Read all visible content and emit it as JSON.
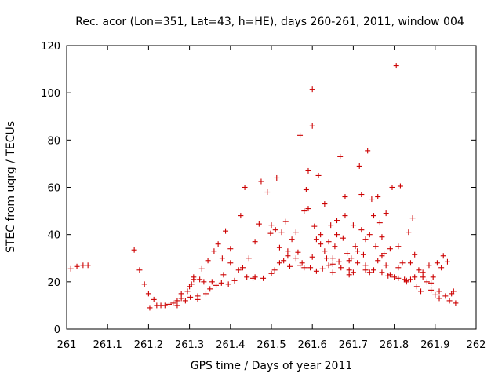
{
  "chart_data": {
    "type": "scatter",
    "title": "Rec. acor (Lon=351, Lat=43, h=HE), days 260-261, 2011, window 004",
    "xlabel": "GPS time / Days of year 2011",
    "ylabel": "STEC from uqrg / TECUs",
    "xlim": [
      261,
      262
    ],
    "ylim": [
      0,
      120
    ],
    "xticks": [
      261,
      261.1,
      261.2,
      261.3,
      261.4,
      261.5,
      261.6,
      261.7,
      261.8,
      261.9,
      262
    ],
    "yticks": [
      0,
      20,
      40,
      60,
      80,
      100,
      120
    ],
    "xtick_labels": [
      "261",
      "261.1",
      "261.2",
      "261.3",
      "261.4",
      "261.5",
      "261.6",
      "261.7",
      "261.8",
      "261.9",
      "262"
    ],
    "ytick_labels": [
      "0",
      "20",
      "40",
      "60",
      "80",
      "100",
      "120"
    ],
    "marker_color": "#cc0000",
    "marker": "+",
    "points": [
      [
        261.01,
        25.5
      ],
      [
        261.025,
        26.5
      ],
      [
        261.04,
        27.0
      ],
      [
        261.052,
        27.0
      ],
      [
        261.165,
        33.5
      ],
      [
        261.178,
        25.0
      ],
      [
        261.19,
        19.0
      ],
      [
        261.2,
        15.0
      ],
      [
        261.203,
        9.0
      ],
      [
        261.213,
        12.5
      ],
      [
        261.22,
        10.0
      ],
      [
        261.23,
        10.0
      ],
      [
        261.24,
        10.0
      ],
      [
        261.25,
        10.5
      ],
      [
        261.26,
        11.0
      ],
      [
        261.27,
        12.0
      ],
      [
        261.28,
        13.0
      ],
      [
        261.29,
        12.0
      ],
      [
        261.295,
        16.0
      ],
      [
        261.302,
        13.5
      ],
      [
        261.305,
        19.0
      ],
      [
        261.31,
        22.0
      ],
      [
        261.32,
        14.0
      ],
      [
        261.325,
        21.0
      ],
      [
        261.335,
        20.0
      ],
      [
        261.34,
        15.0
      ],
      [
        261.345,
        29.0
      ],
      [
        261.35,
        17.0
      ],
      [
        261.355,
        20.0
      ],
      [
        261.365,
        18.5
      ],
      [
        261.37,
        36.0
      ],
      [
        261.378,
        19.5
      ],
      [
        261.383,
        23.0
      ],
      [
        261.388,
        41.5
      ],
      [
        261.395,
        19.0
      ],
      [
        261.4,
        28.0
      ],
      [
        261.41,
        20.5
      ],
      [
        261.42,
        25.0
      ],
      [
        261.425,
        48.0
      ],
      [
        261.435,
        60.0
      ],
      [
        261.44,
        22.0
      ],
      [
        261.445,
        30.0
      ],
      [
        261.455,
        21.5
      ],
      [
        261.46,
        37.0
      ],
      [
        261.47,
        44.5
      ],
      [
        261.475,
        62.5
      ],
      [
        261.48,
        21.5
      ],
      [
        261.49,
        58.0
      ],
      [
        261.498,
        40.5
      ],
      [
        261.5,
        44.0
      ],
      [
        261.508,
        25.0
      ],
      [
        261.51,
        42.0
      ],
      [
        261.513,
        64.0
      ],
      [
        261.52,
        34.5
      ],
      [
        261.525,
        41.0
      ],
      [
        261.53,
        29.0
      ],
      [
        261.535,
        45.5
      ],
      [
        261.54,
        33.0
      ],
      [
        261.545,
        26.5
      ],
      [
        261.55,
        38.0
      ],
      [
        261.56,
        30.0
      ],
      [
        261.565,
        32.5
      ],
      [
        261.57,
        82.0
      ],
      [
        261.575,
        28.0
      ],
      [
        261.58,
        26.0
      ],
      [
        261.585,
        59.0
      ],
      [
        261.59,
        51.0
      ],
      [
        261.595,
        26.0
      ],
      [
        261.6,
        86.0
      ],
      [
        261.605,
        43.5
      ],
      [
        261.61,
        24.5
      ],
      [
        261.615,
        65.0
      ],
      [
        261.62,
        36.0
      ],
      [
        261.625,
        25.5
      ],
      [
        261.63,
        53.0
      ],
      [
        261.635,
        30.0
      ],
      [
        261.64,
        27.0
      ],
      [
        261.645,
        44.0
      ],
      [
        261.65,
        24.0
      ],
      [
        261.655,
        35.0
      ],
      [
        261.66,
        40.0
      ],
      [
        261.665,
        28.5
      ],
      [
        261.668,
        73.0
      ],
      [
        261.675,
        38.5
      ],
      [
        261.68,
        48.0
      ],
      [
        261.685,
        32.0
      ],
      [
        261.69,
        25.0
      ],
      [
        261.695,
        30.0
      ],
      [
        261.7,
        24.0
      ],
      [
        261.705,
        35.0
      ],
      [
        261.71,
        28.0
      ],
      [
        261.715,
        69.0
      ],
      [
        261.72,
        57.0
      ],
      [
        261.725,
        31.5
      ],
      [
        261.73,
        38.0
      ],
      [
        261.735,
        75.5
      ],
      [
        261.74,
        24.0
      ],
      [
        261.745,
        55.0
      ],
      [
        261.75,
        48.0
      ],
      [
        261.755,
        35.0
      ],
      [
        261.76,
        29.0
      ],
      [
        261.765,
        45.0
      ],
      [
        261.77,
        39.0
      ],
      [
        261.775,
        32.0
      ],
      [
        261.78,
        27.0
      ],
      [
        261.785,
        22.5
      ],
      [
        261.79,
        34.0
      ],
      [
        261.795,
        60.0
      ],
      [
        261.8,
        22.0
      ],
      [
        261.805,
        111.5
      ],
      [
        261.81,
        35.0
      ],
      [
        261.815,
        60.5
      ],
      [
        261.82,
        28.0
      ],
      [
        261.825,
        21.0
      ],
      [
        261.83,
        20.0
      ],
      [
        261.835,
        41.0
      ],
      [
        261.84,
        28.0
      ],
      [
        261.845,
        47.0
      ],
      [
        261.85,
        22.0
      ],
      [
        261.855,
        18.0
      ],
      [
        261.86,
        25.0
      ],
      [
        261.865,
        16.0
      ],
      [
        261.87,
        24.0
      ],
      [
        261.88,
        20.0
      ],
      [
        261.885,
        27.0
      ],
      [
        261.89,
        16.5
      ],
      [
        261.895,
        22.0
      ],
      [
        261.9,
        14.5
      ],
      [
        261.905,
        28.0
      ],
      [
        261.91,
        13.0
      ],
      [
        261.915,
        26.0
      ],
      [
        261.92,
        31.0
      ],
      [
        261.925,
        14.0
      ],
      [
        261.93,
        28.5
      ],
      [
        261.935,
        12.0
      ],
      [
        261.94,
        15.0
      ],
      [
        261.945,
        16.0
      ],
      [
        261.95,
        11.0
      ],
      [
        261.6,
        101.5
      ],
      [
        261.59,
        67.0
      ],
      [
        261.62,
        40.0
      ],
      [
        261.64,
        37.0
      ],
      [
        261.66,
        46.0
      ],
      [
        261.68,
        56.0
      ],
      [
        261.7,
        44.0
      ],
      [
        261.72,
        42.0
      ],
      [
        261.74,
        40.0
      ],
      [
        261.76,
        56.0
      ],
      [
        261.78,
        49.0
      ],
      [
        261.56,
        41.0
      ],
      [
        261.58,
        50.0
      ],
      [
        261.6,
        30.5
      ],
      [
        261.63,
        33.0
      ],
      [
        261.65,
        27.5
      ],
      [
        261.67,
        26.0
      ],
      [
        261.69,
        29.0
      ],
      [
        261.71,
        33.0
      ],
      [
        261.73,
        27.0
      ],
      [
        261.75,
        25.0
      ],
      [
        261.77,
        24.0
      ],
      [
        261.79,
        23.0
      ],
      [
        261.81,
        21.5
      ],
      [
        261.83,
        20.5
      ],
      [
        261.85,
        31.5
      ],
      [
        261.87,
        22.0
      ],
      [
        261.89,
        19.5
      ],
      [
        261.91,
        16.0
      ],
      [
        261.43,
        26.0
      ],
      [
        261.46,
        22.0
      ],
      [
        261.5,
        23.5
      ],
      [
        261.52,
        28.0
      ],
      [
        261.54,
        31.0
      ],
      [
        261.57,
        27.0
      ],
      [
        261.61,
        38.0
      ],
      [
        261.65,
        30.0
      ],
      [
        261.69,
        23.0
      ],
      [
        261.73,
        25.0
      ],
      [
        261.77,
        31.0
      ],
      [
        261.81,
        26.0
      ],
      [
        261.84,
        21.0
      ],
      [
        261.36,
        33.0
      ],
      [
        261.38,
        30.0
      ],
      [
        261.4,
        34.0
      ],
      [
        261.33,
        25.5
      ],
      [
        261.32,
        12.5
      ],
      [
        261.31,
        21.0
      ],
      [
        261.3,
        18.0
      ],
      [
        261.28,
        15.0
      ],
      [
        261.27,
        10.0
      ]
    ]
  }
}
